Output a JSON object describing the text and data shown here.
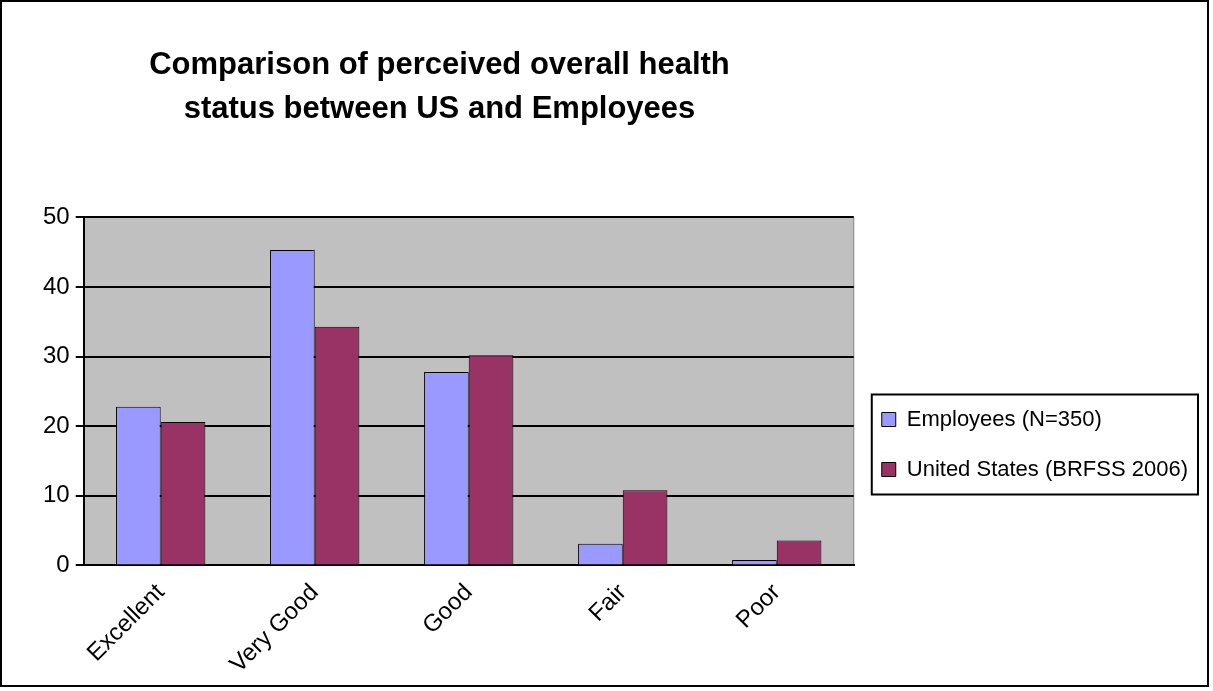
{
  "chart_data": {
    "type": "bar",
    "title": "Comparison of perceived overall health status between US and Employees",
    "categories": [
      "Excellent",
      "Very Good",
      "Good",
      "Fair",
      "Poor"
    ],
    "series": [
      {
        "name": "Employees (N=350)",
        "color": "#9999ff",
        "values": [
          22.8,
          45.3,
          27.8,
          3.1,
          0.8
        ]
      },
      {
        "name": "United States (BRFSS 2006)",
        "color": "#993366",
        "values": [
          20.6,
          34.3,
          30.2,
          10.8,
          3.6
        ]
      }
    ],
    "ylim": [
      0,
      50
    ],
    "yticks": [
      0,
      10,
      20,
      30,
      40,
      50
    ],
    "grid": "y",
    "legend": "right"
  }
}
